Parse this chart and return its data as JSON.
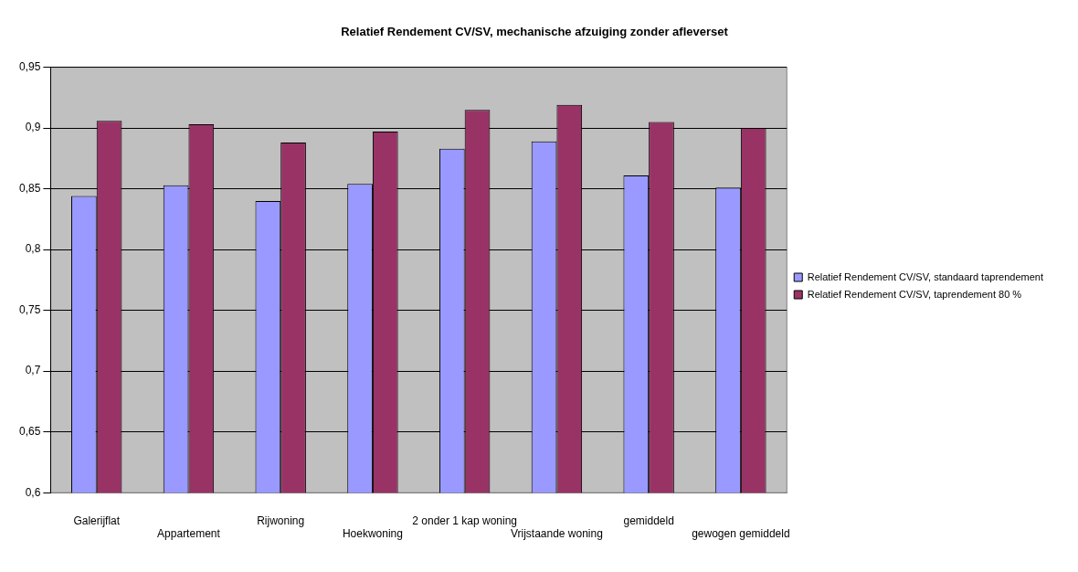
{
  "chart_data": {
    "type": "bar",
    "title": "Relatief Rendement CV/SV, mechanische afzuiging zonder afleverset",
    "categories": [
      "Galerijflat",
      "Appartement",
      "Rijwoning",
      "Hoekwoning",
      "2 onder 1 kap woning",
      "Vrijstaande woning",
      "gemiddeld",
      "gewogen gemiddeld"
    ],
    "series": [
      {
        "name": "Relatief Rendement CV/SV, standaard taprendement",
        "color": "#9999ff",
        "values": [
          0.844,
          0.853,
          0.84,
          0.854,
          0.883,
          0.889,
          0.861,
          0.851
        ]
      },
      {
        "name": "Relatief Rendement CV/SV, taprendement 80 %",
        "color": "#993366",
        "values": [
          0.906,
          0.903,
          0.888,
          0.897,
          0.915,
          0.919,
          0.905,
          0.9
        ]
      }
    ],
    "ylim": [
      0.6,
      0.95
    ],
    "yticks": [
      {
        "value": 0.6,
        "label": "0,6"
      },
      {
        "value": 0.65,
        "label": "0,65"
      },
      {
        "value": 0.7,
        "label": "0,7"
      },
      {
        "value": 0.75,
        "label": "0,75"
      },
      {
        "value": 0.8,
        "label": "0,8"
      },
      {
        "value": 0.85,
        "label": "0,85"
      },
      {
        "value": 0.9,
        "label": "0,9"
      },
      {
        "value": 0.95,
        "label": "0,95"
      }
    ],
    "grid": "y",
    "legend": "right"
  }
}
